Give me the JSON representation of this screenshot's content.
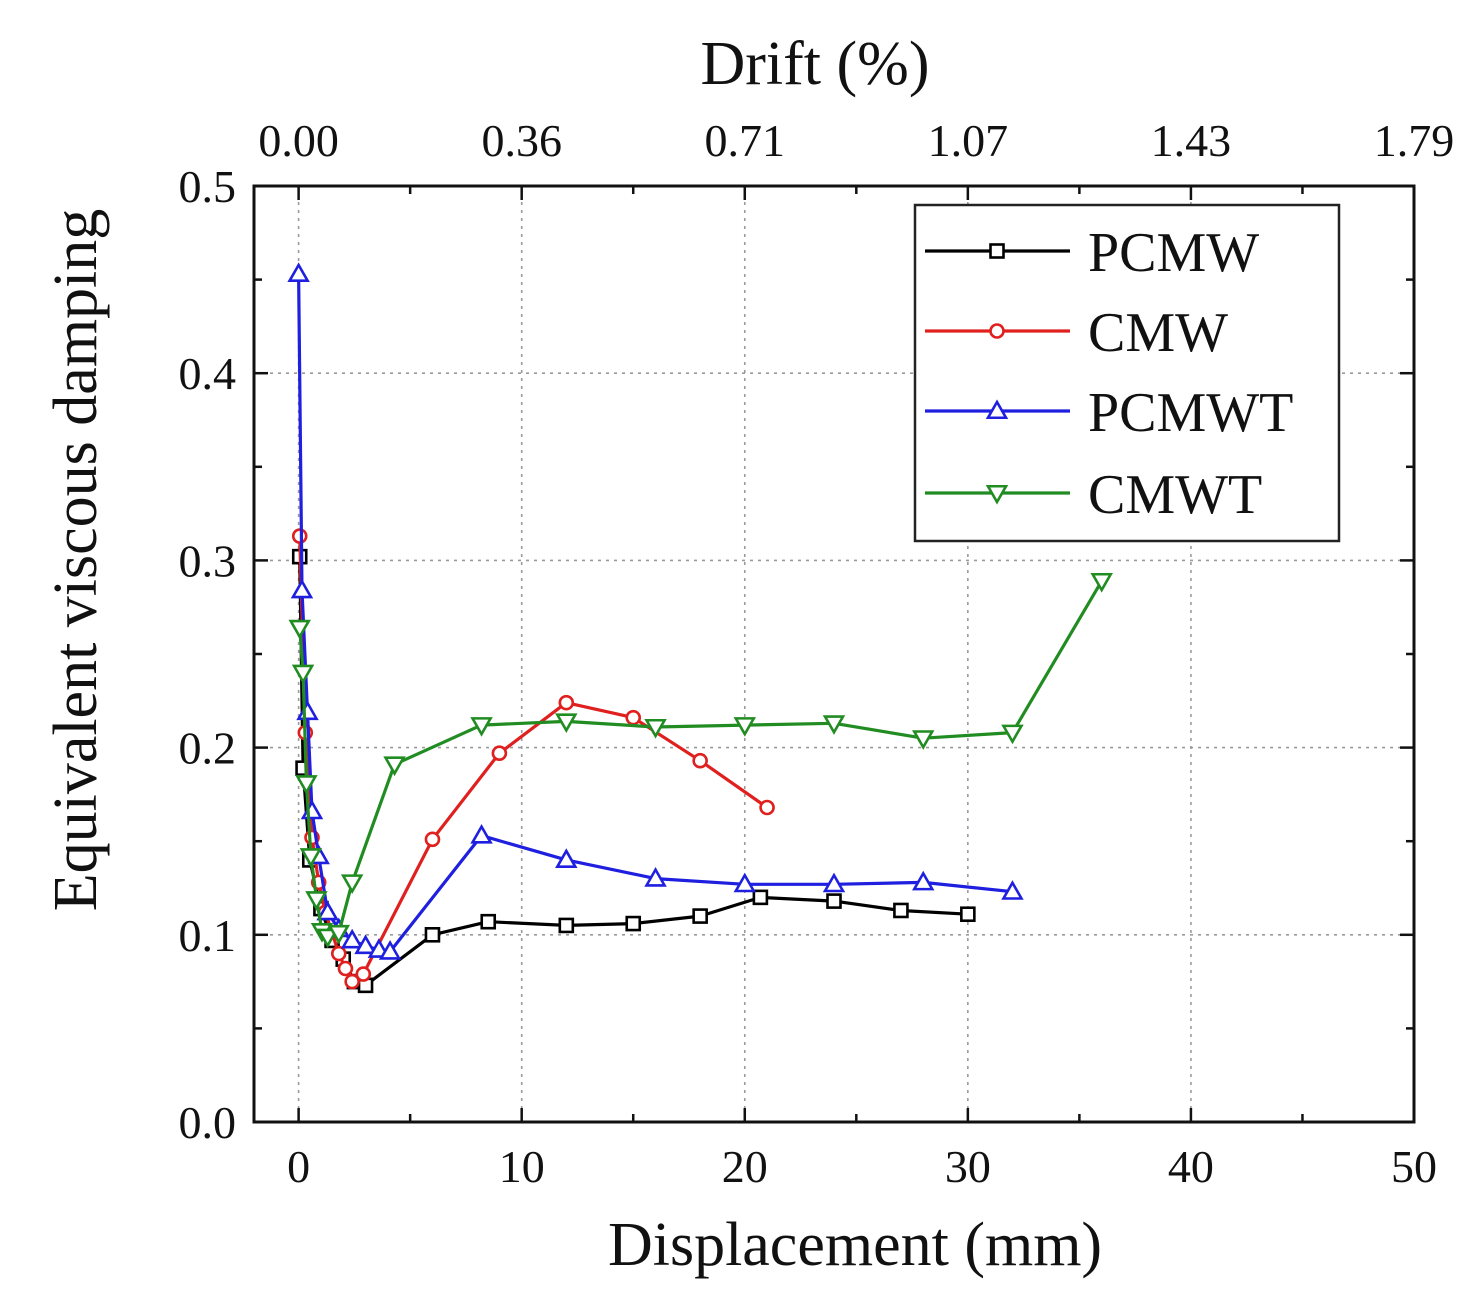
{
  "chart_data": {
    "type": "line",
    "xlabel": "Displacement (mm)",
    "ylabel": "Equivalent viscous damping",
    "x2label": "Drift (%)",
    "xlim": [
      -2,
      50
    ],
    "ylim": [
      0,
      0.5
    ],
    "xticks": [
      0,
      10,
      20,
      30,
      40,
      50
    ],
    "xtick_labels": [
      "0",
      "10",
      "20",
      "30",
      "40",
      "50"
    ],
    "yticks": [
      0,
      0.1,
      0.2,
      0.3,
      0.4,
      0.5
    ],
    "ytick_labels": [
      "0.0",
      "0.1",
      "0.2",
      "0.3",
      "0.4",
      "0.5"
    ],
    "x2ticks": [
      0,
      10,
      20,
      30,
      40,
      50
    ],
    "x2tick_labels": [
      "0.00",
      "0.36",
      "0.71",
      "1.07",
      "1.43",
      "1.79"
    ],
    "grid": true,
    "legend_position": "top-right",
    "series": [
      {
        "name": "PCMW",
        "color": "#000000",
        "marker": "square",
        "x": [
          0.05,
          0.2,
          0.5,
          1.0,
          1.5,
          2.0,
          2.5,
          3.0,
          6.0,
          8.5,
          12.0,
          15.0,
          18.0,
          20.7,
          24.0,
          27.0,
          30.0
        ],
        "y": [
          0.302,
          0.189,
          0.14,
          0.114,
          0.097,
          0.087,
          0.075,
          0.073,
          0.1,
          0.107,
          0.105,
          0.106,
          0.11,
          0.12,
          0.118,
          0.113,
          0.111
        ]
      },
      {
        "name": "CMW",
        "color": "#e0201e",
        "marker": "circle",
        "x": [
          0.05,
          0.3,
          0.6,
          0.9,
          1.2,
          1.8,
          2.1,
          2.4,
          2.9,
          6.0,
          9.0,
          12.0,
          15.0,
          18.0,
          21.0
        ],
        "y": [
          0.313,
          0.208,
          0.152,
          0.128,
          0.112,
          0.09,
          0.082,
          0.075,
          0.079,
          0.151,
          0.197,
          0.224,
          0.216,
          0.193,
          0.168
        ]
      },
      {
        "name": "PCMWT",
        "color": "#1f1fe0",
        "marker": "triangle-up",
        "x": [
          0.0,
          0.15,
          0.4,
          0.6,
          0.9,
          1.3,
          1.8,
          2.4,
          3.0,
          3.6,
          4.1,
          8.2,
          12.0,
          16.0,
          20.0,
          24.0,
          28.0,
          32.0
        ],
        "y": [
          0.453,
          0.284,
          0.219,
          0.166,
          0.142,
          0.112,
          0.103,
          0.097,
          0.094,
          0.092,
          0.091,
          0.153,
          0.14,
          0.13,
          0.127,
          0.127,
          0.128,
          0.123
        ]
      },
      {
        "name": "CMWT",
        "color": "#218c21",
        "marker": "triangle-down",
        "x": [
          0.05,
          0.2,
          0.35,
          0.55,
          0.8,
          1.05,
          1.3,
          1.8,
          2.4,
          4.3,
          8.2,
          12.0,
          16.0,
          20.0,
          24.0,
          28.0,
          32.0,
          36.0
        ],
        "y": [
          0.264,
          0.24,
          0.181,
          0.142,
          0.119,
          0.102,
          0.099,
          0.101,
          0.128,
          0.191,
          0.212,
          0.214,
          0.211,
          0.212,
          0.213,
          0.205,
          0.208,
          0.289
        ]
      }
    ]
  }
}
